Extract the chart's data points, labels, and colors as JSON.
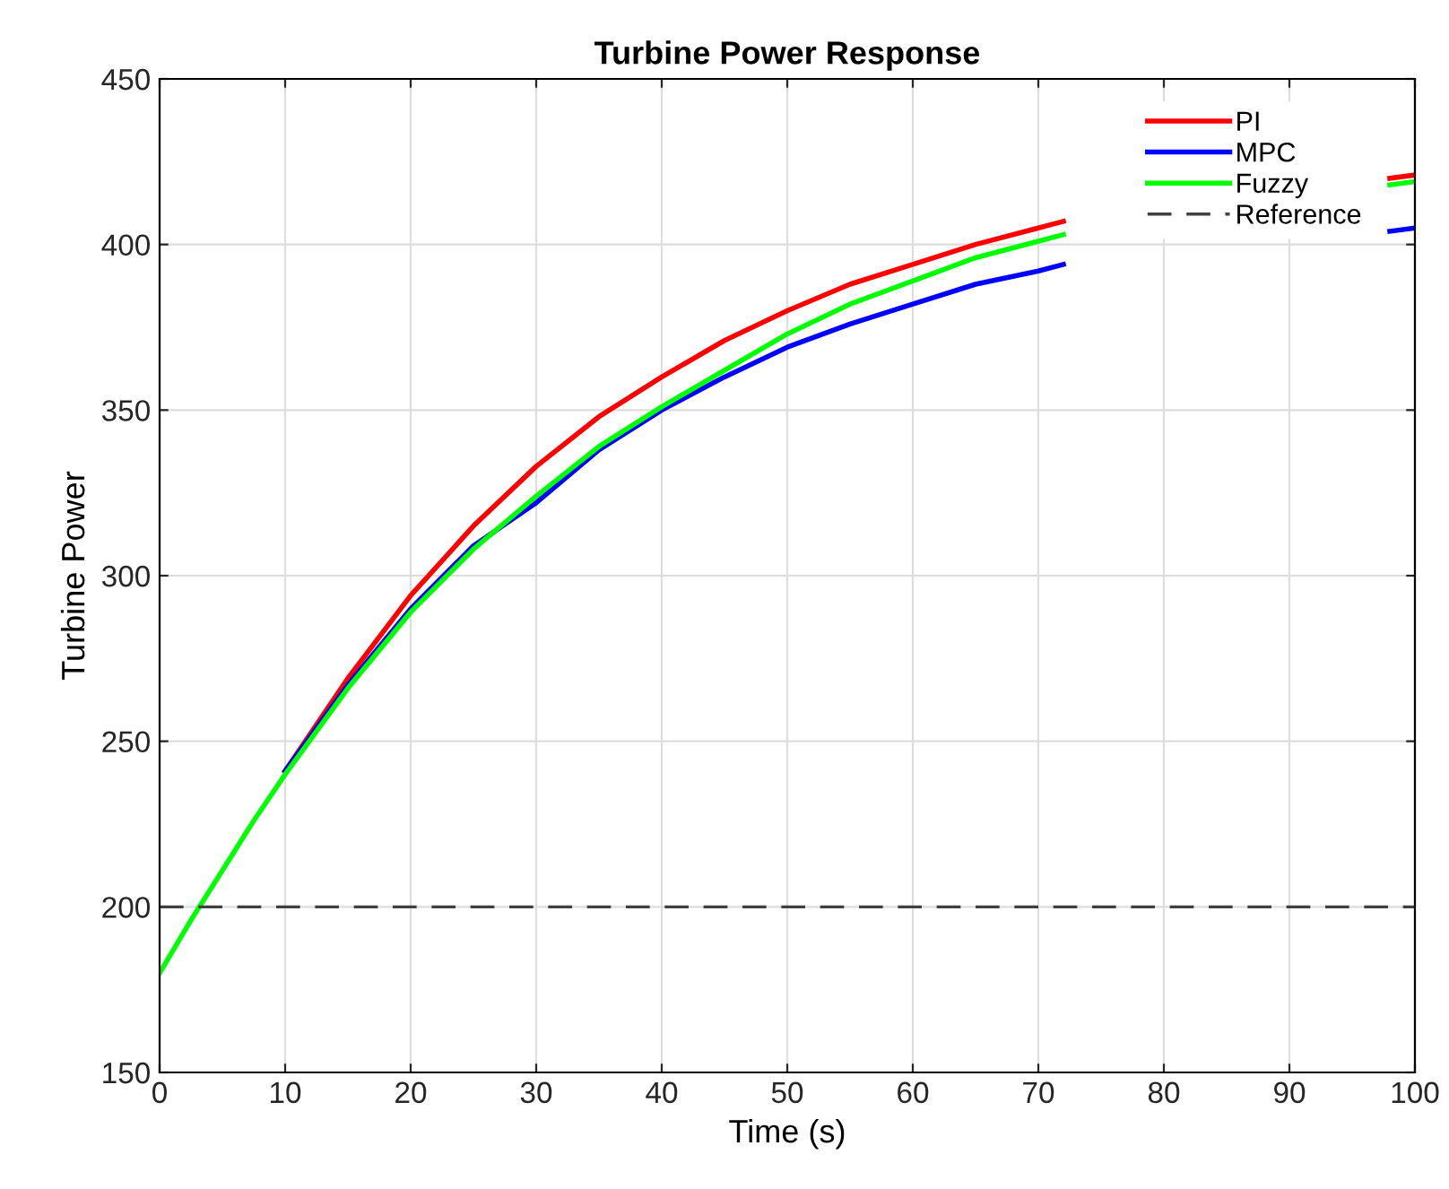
{
  "chart_data": {
    "type": "line",
    "title": "Turbine Power Response",
    "xlabel": "Time (s)",
    "ylabel": "Turbine Power",
    "x": [
      0,
      2.5,
      5,
      7.5,
      10,
      15,
      20,
      25,
      30,
      35,
      40,
      45,
      50,
      55,
      60,
      65,
      70,
      72,
      75,
      80,
      85,
      90,
      95,
      98,
      100
    ],
    "series": [
      {
        "name": "PI",
        "color": "#ff0000",
        "values": [
          null,
          null,
          null,
          null,
          241,
          269,
          294,
          315,
          333,
          348,
          360,
          371,
          380,
          388,
          394,
          400,
          405,
          407,
          null,
          null,
          null,
          null,
          null,
          420,
          421
        ]
      },
      {
        "name": "MPC",
        "color": "#0000ff",
        "values": [
          null,
          null,
          null,
          null,
          241,
          267,
          290,
          309,
          322,
          338,
          350,
          360,
          369,
          376,
          382,
          388,
          392,
          394,
          null,
          null,
          null,
          null,
          null,
          404,
          405
        ]
      },
      {
        "name": "Fuzzy",
        "color": "#00ff00",
        "values": [
          180,
          196,
          211,
          226,
          240,
          266,
          289,
          308,
          324,
          339,
          351,
          362,
          373,
          382,
          389,
          396,
          401,
          403,
          null,
          null,
          null,
          null,
          null,
          418,
          419
        ]
      }
    ],
    "ref_lines": [
      {
        "axis": "y",
        "value": 200,
        "label": "Reference",
        "color": "#404040",
        "line_style": "dashed"
      }
    ],
    "xlim": [
      0,
      100
    ],
    "ylim": [
      150,
      450
    ],
    "xticks": [
      0,
      10,
      20,
      30,
      40,
      50,
      60,
      70,
      80,
      90,
      100
    ],
    "yticks": [
      150,
      200,
      250,
      300,
      350,
      400,
      450
    ],
    "grid": true,
    "legend": "top right",
    "line_style": "solid",
    "marker": "none"
  }
}
